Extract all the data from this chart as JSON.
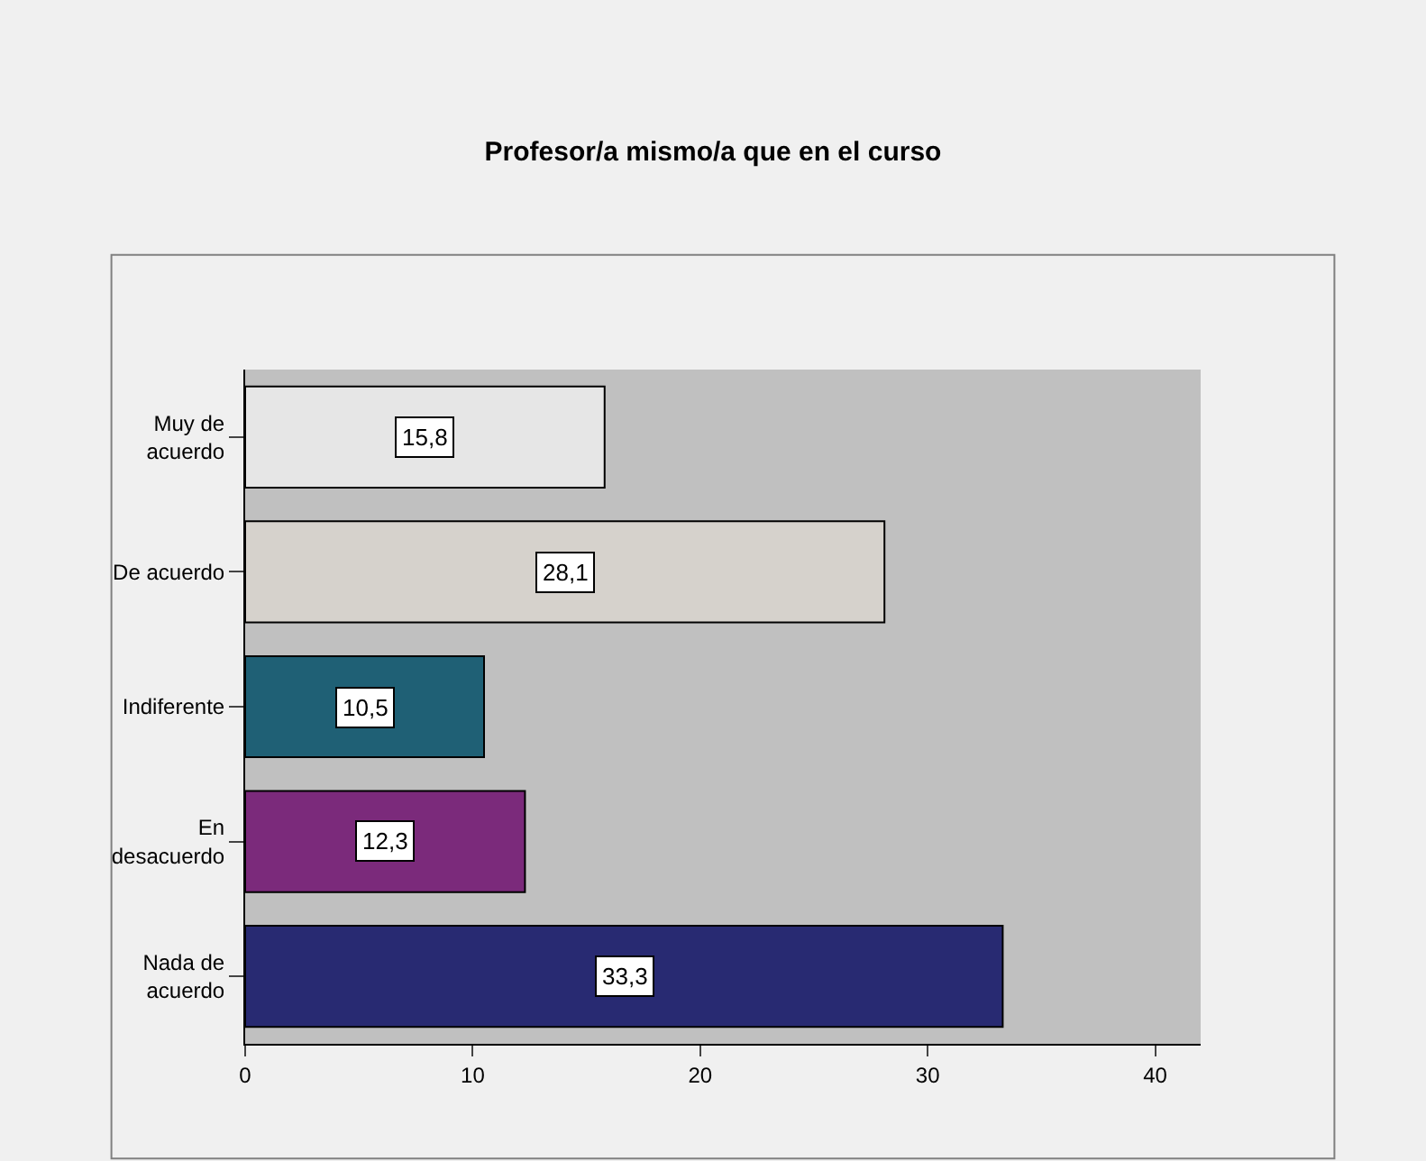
{
  "chart_data": {
    "type": "bar",
    "orientation": "horizontal",
    "title": "Profesor/a mismo/a que en el curso",
    "categories": [
      "Muy de acuerdo",
      "De acuerdo",
      "Indiferente",
      "En desacuerdo",
      "Nada de acuerdo"
    ],
    "values": [
      15.8,
      28.1,
      10.5,
      12.3,
      33.3
    ],
    "colors": [
      "#e6e6e6",
      "#d6d2cc",
      "#1f6075",
      "#7b2a7b",
      "#282a72"
    ],
    "value_labels": [
      "15,8",
      "28,1",
      "10,5",
      "12,3",
      "33,3"
    ],
    "xlim": [
      0,
      42
    ],
    "xticks": [
      0,
      10,
      20,
      30,
      40
    ],
    "grid": false,
    "legend": false
  }
}
